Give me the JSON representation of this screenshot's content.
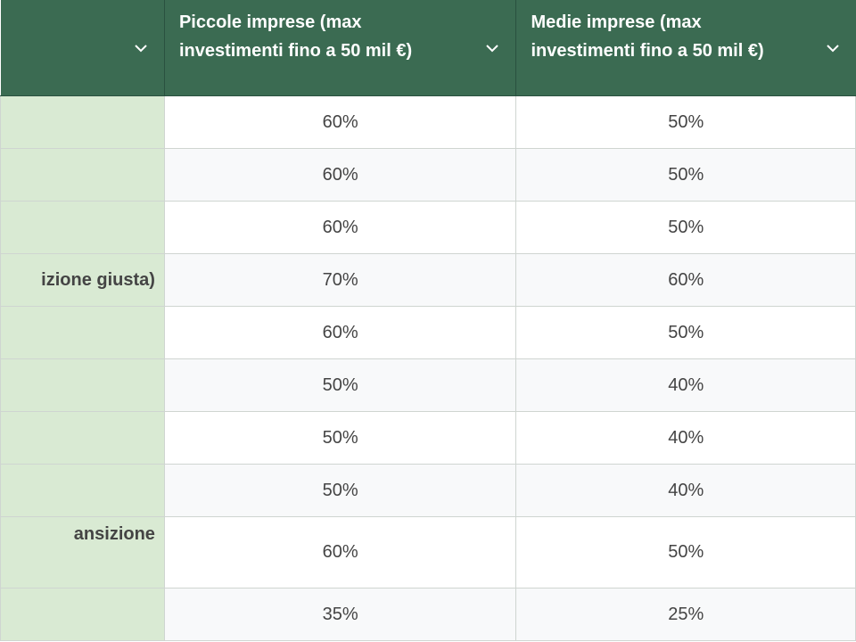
{
  "header": {
    "col0_label": "",
    "col1_label": "Piccole imprese (max investimenti fino a 50 mil €)",
    "col2_label": "Medie imprese (max investimenti fino a 50 mil €)"
  },
  "rows": [
    {
      "label": "",
      "small": "60%",
      "medium": "50%"
    },
    {
      "label": "",
      "small": "60%",
      "medium": "50%"
    },
    {
      "label": "",
      "small": "60%",
      "medium": "50%"
    },
    {
      "label": "izione giusta)",
      "small": "70%",
      "medium": "60%"
    },
    {
      "label": "",
      "small": "60%",
      "medium": "50%"
    },
    {
      "label": "",
      "small": "50%",
      "medium": "40%"
    },
    {
      "label": "",
      "small": "50%",
      "medium": "40%"
    },
    {
      "label": "",
      "small": "50%",
      "medium": "40%"
    },
    {
      "label": "ansizione",
      "small": "60%",
      "medium": "50%"
    },
    {
      "label": "",
      "small": "35%",
      "medium": "25%"
    }
  ],
  "colors": {
    "header_bg": "#3b6b52",
    "label_bg": "#d9ead3",
    "alt_row_bg": "#f8f9fa"
  },
  "icons": {
    "column_menu": "chevron-down-icon"
  }
}
